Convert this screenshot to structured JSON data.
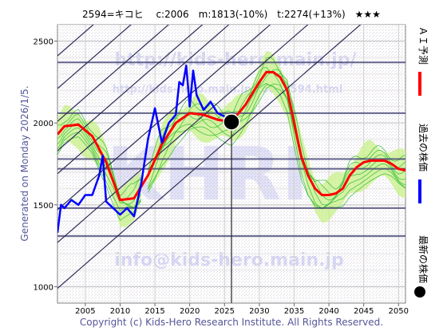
{
  "header": {
    "title": "2594=キコヒ　 c:2006　m:1813(-10%)　t:2274(+13%)　★★★"
  },
  "side_label": "Generated on Monday 2026/1/5.",
  "footer": "Copyright (c) Kids-Hero Research Institute. All Rights Reserved.",
  "watermarks": {
    "url": "http://kids-hero.main.jp/",
    "url2": "http://kids-hero.main.jp/code2594.html",
    "big": "KHRI",
    "email": "info@kids-hero.main.jp"
  },
  "legend": [
    {
      "label": "ＡＩ予測",
      "color": "#ff0000"
    },
    {
      "label": "過去の株価",
      "color": "#0000ff"
    },
    {
      "label": "最新の株価",
      "color": "#000000"
    }
  ],
  "colors": {
    "prediction": "#ff0000",
    "history": "#0000ff",
    "band_fill": "#c8f088",
    "band_lines": "#33bb33",
    "trend_lines": "#2b2b55",
    "levels": "#404070",
    "latest_marker": "#000000"
  },
  "chart_data": {
    "type": "line",
    "xlim": [
      2001,
      2051
    ],
    "ylim": [
      900,
      2600
    ],
    "x_ticks": [
      2005,
      2010,
      2015,
      2020,
      2025,
      2030,
      2035,
      2040,
      2045,
      2050
    ],
    "y_ticks": [
      1000,
      1500,
      2000,
      2500
    ],
    "grid": true,
    "horizontal_levels": [
      2370,
      2060,
      1780,
      1720,
      1480,
      1310
    ],
    "latest_point": {
      "x": 2026,
      "y": 2006
    },
    "series": [
      {
        "role": "prediction",
        "x": [
          2001,
          2002,
          2004,
          2006,
          2008,
          2010,
          2012,
          2014,
          2016,
          2018,
          2020,
          2022,
          2024,
          2026,
          2028,
          2030,
          2031,
          2032,
          2033,
          2034,
          2035,
          2036,
          2037,
          2038,
          2039,
          2040,
          2041,
          2042,
          2043,
          2044,
          2045,
          2046,
          2047,
          2048,
          2049,
          2050,
          2051
        ],
        "y": [
          1930,
          1980,
          1990,
          1920,
          1760,
          1530,
          1540,
          1680,
          1870,
          2000,
          2060,
          2050,
          2020,
          2006,
          2110,
          2250,
          2310,
          2310,
          2280,
          2200,
          2000,
          1800,
          1680,
          1600,
          1560,
          1560,
          1570,
          1600,
          1680,
          1730,
          1760,
          1770,
          1770,
          1770,
          1750,
          1720,
          1710
        ]
      },
      {
        "role": "history",
        "x": [
          2001,
          2001.5,
          2002,
          2003,
          2004,
          2005,
          2006,
          2007,
          2007.5,
          2008,
          2009,
          2010,
          2011,
          2012,
          2013,
          2014,
          2015,
          2016,
          2017,
          2018,
          2018.5,
          2019,
          2019.5,
          2020,
          2020.5,
          2021,
          2022,
          2023,
          2024,
          2025
        ],
        "y": [
          1330,
          1500,
          1480,
          1530,
          1500,
          1560,
          1560,
          1680,
          1800,
          1520,
          1480,
          1440,
          1480,
          1430,
          1620,
          1900,
          2090,
          1880,
          2000,
          2050,
          2250,
          2230,
          2350,
          2100,
          2320,
          2170,
          2080,
          2130,
          2060,
          2040
        ]
      }
    ]
  }
}
